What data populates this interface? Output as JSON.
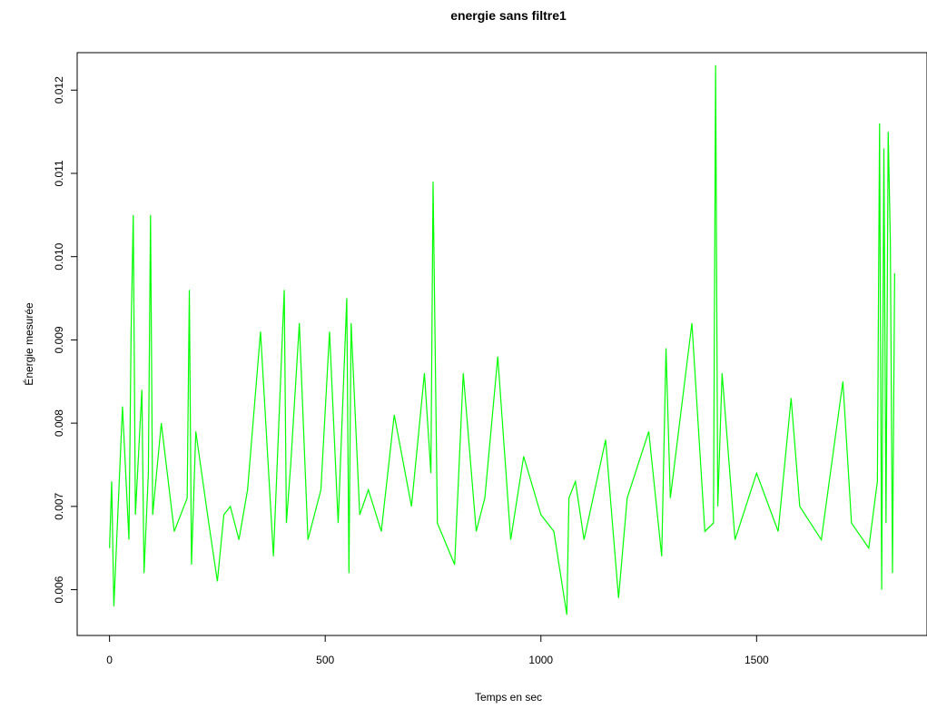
{
  "chart_data": {
    "type": "line",
    "title": "energie sans filtre1",
    "xlabel": "Temps en sec",
    "ylabel": "Énergie mesurée",
    "xlim": [
      -75,
      1895
    ],
    "ylim": [
      0.00545,
      0.01245
    ],
    "x_ticks": [
      0,
      500,
      1000,
      1500
    ],
    "x_tick_labels": [
      "0",
      "500",
      "1000",
      "1500"
    ],
    "y_ticks": [
      0.006,
      0.007,
      0.008,
      0.009,
      0.01,
      0.011,
      0.012
    ],
    "y_tick_labels": [
      "0.006",
      "0.007",
      "0.008",
      "0.009",
      "0.010",
      "0.011",
      "0.012"
    ],
    "grid": false,
    "line_color": "#00ff00",
    "series": [
      {
        "x": [
          0,
          5,
          10,
          20,
          30,
          45,
          50,
          55,
          60,
          75,
          80,
          90,
          95,
          100,
          120,
          150,
          180,
          185,
          190,
          200,
          230,
          250,
          265,
          280,
          300,
          320,
          350,
          380,
          405,
          410,
          420,
          440,
          460,
          490,
          510,
          530,
          550,
          555,
          560,
          580,
          600,
          630,
          660,
          700,
          730,
          745,
          750,
          760,
          800,
          820,
          850,
          870,
          900,
          930,
          960,
          1000,
          1030,
          1060,
          1065,
          1080,
          1100,
          1150,
          1180,
          1200,
          1250,
          1280,
          1290,
          1300,
          1350,
          1380,
          1400,
          1405,
          1410,
          1420,
          1450,
          1500,
          1550,
          1580,
          1600,
          1650,
          1700,
          1720,
          1760,
          1780,
          1785,
          1790,
          1795,
          1800,
          1805,
          1810,
          1815,
          1820
        ],
        "values": [
          0.0065,
          0.0073,
          0.0058,
          0.007,
          0.0082,
          0.0066,
          0.0091,
          0.0105,
          0.0069,
          0.0084,
          0.0062,
          0.0074,
          0.0105,
          0.0069,
          0.008,
          0.0067,
          0.0071,
          0.0096,
          0.0063,
          0.0079,
          0.0068,
          0.0061,
          0.0069,
          0.007,
          0.0066,
          0.0072,
          0.0091,
          0.0064,
          0.0096,
          0.0068,
          0.0075,
          0.0092,
          0.0066,
          0.0072,
          0.0091,
          0.0068,
          0.0095,
          0.0062,
          0.0092,
          0.0069,
          0.0072,
          0.0067,
          0.0081,
          0.007,
          0.0086,
          0.0074,
          0.0109,
          0.0068,
          0.0063,
          0.0086,
          0.0067,
          0.0071,
          0.0088,
          0.0066,
          0.0076,
          0.0069,
          0.0067,
          0.0057,
          0.0071,
          0.0073,
          0.0066,
          0.0078,
          0.0059,
          0.0071,
          0.0079,
          0.0064,
          0.0089,
          0.0071,
          0.0092,
          0.0067,
          0.0068,
          0.0123,
          0.007,
          0.0086,
          0.0066,
          0.0074,
          0.0067,
          0.0083,
          0.007,
          0.0066,
          0.0085,
          0.0068,
          0.0065,
          0.0073,
          0.0116,
          0.006,
          0.0113,
          0.0068,
          0.0115,
          0.0102,
          0.0062,
          0.0098
        ]
      }
    ]
  }
}
